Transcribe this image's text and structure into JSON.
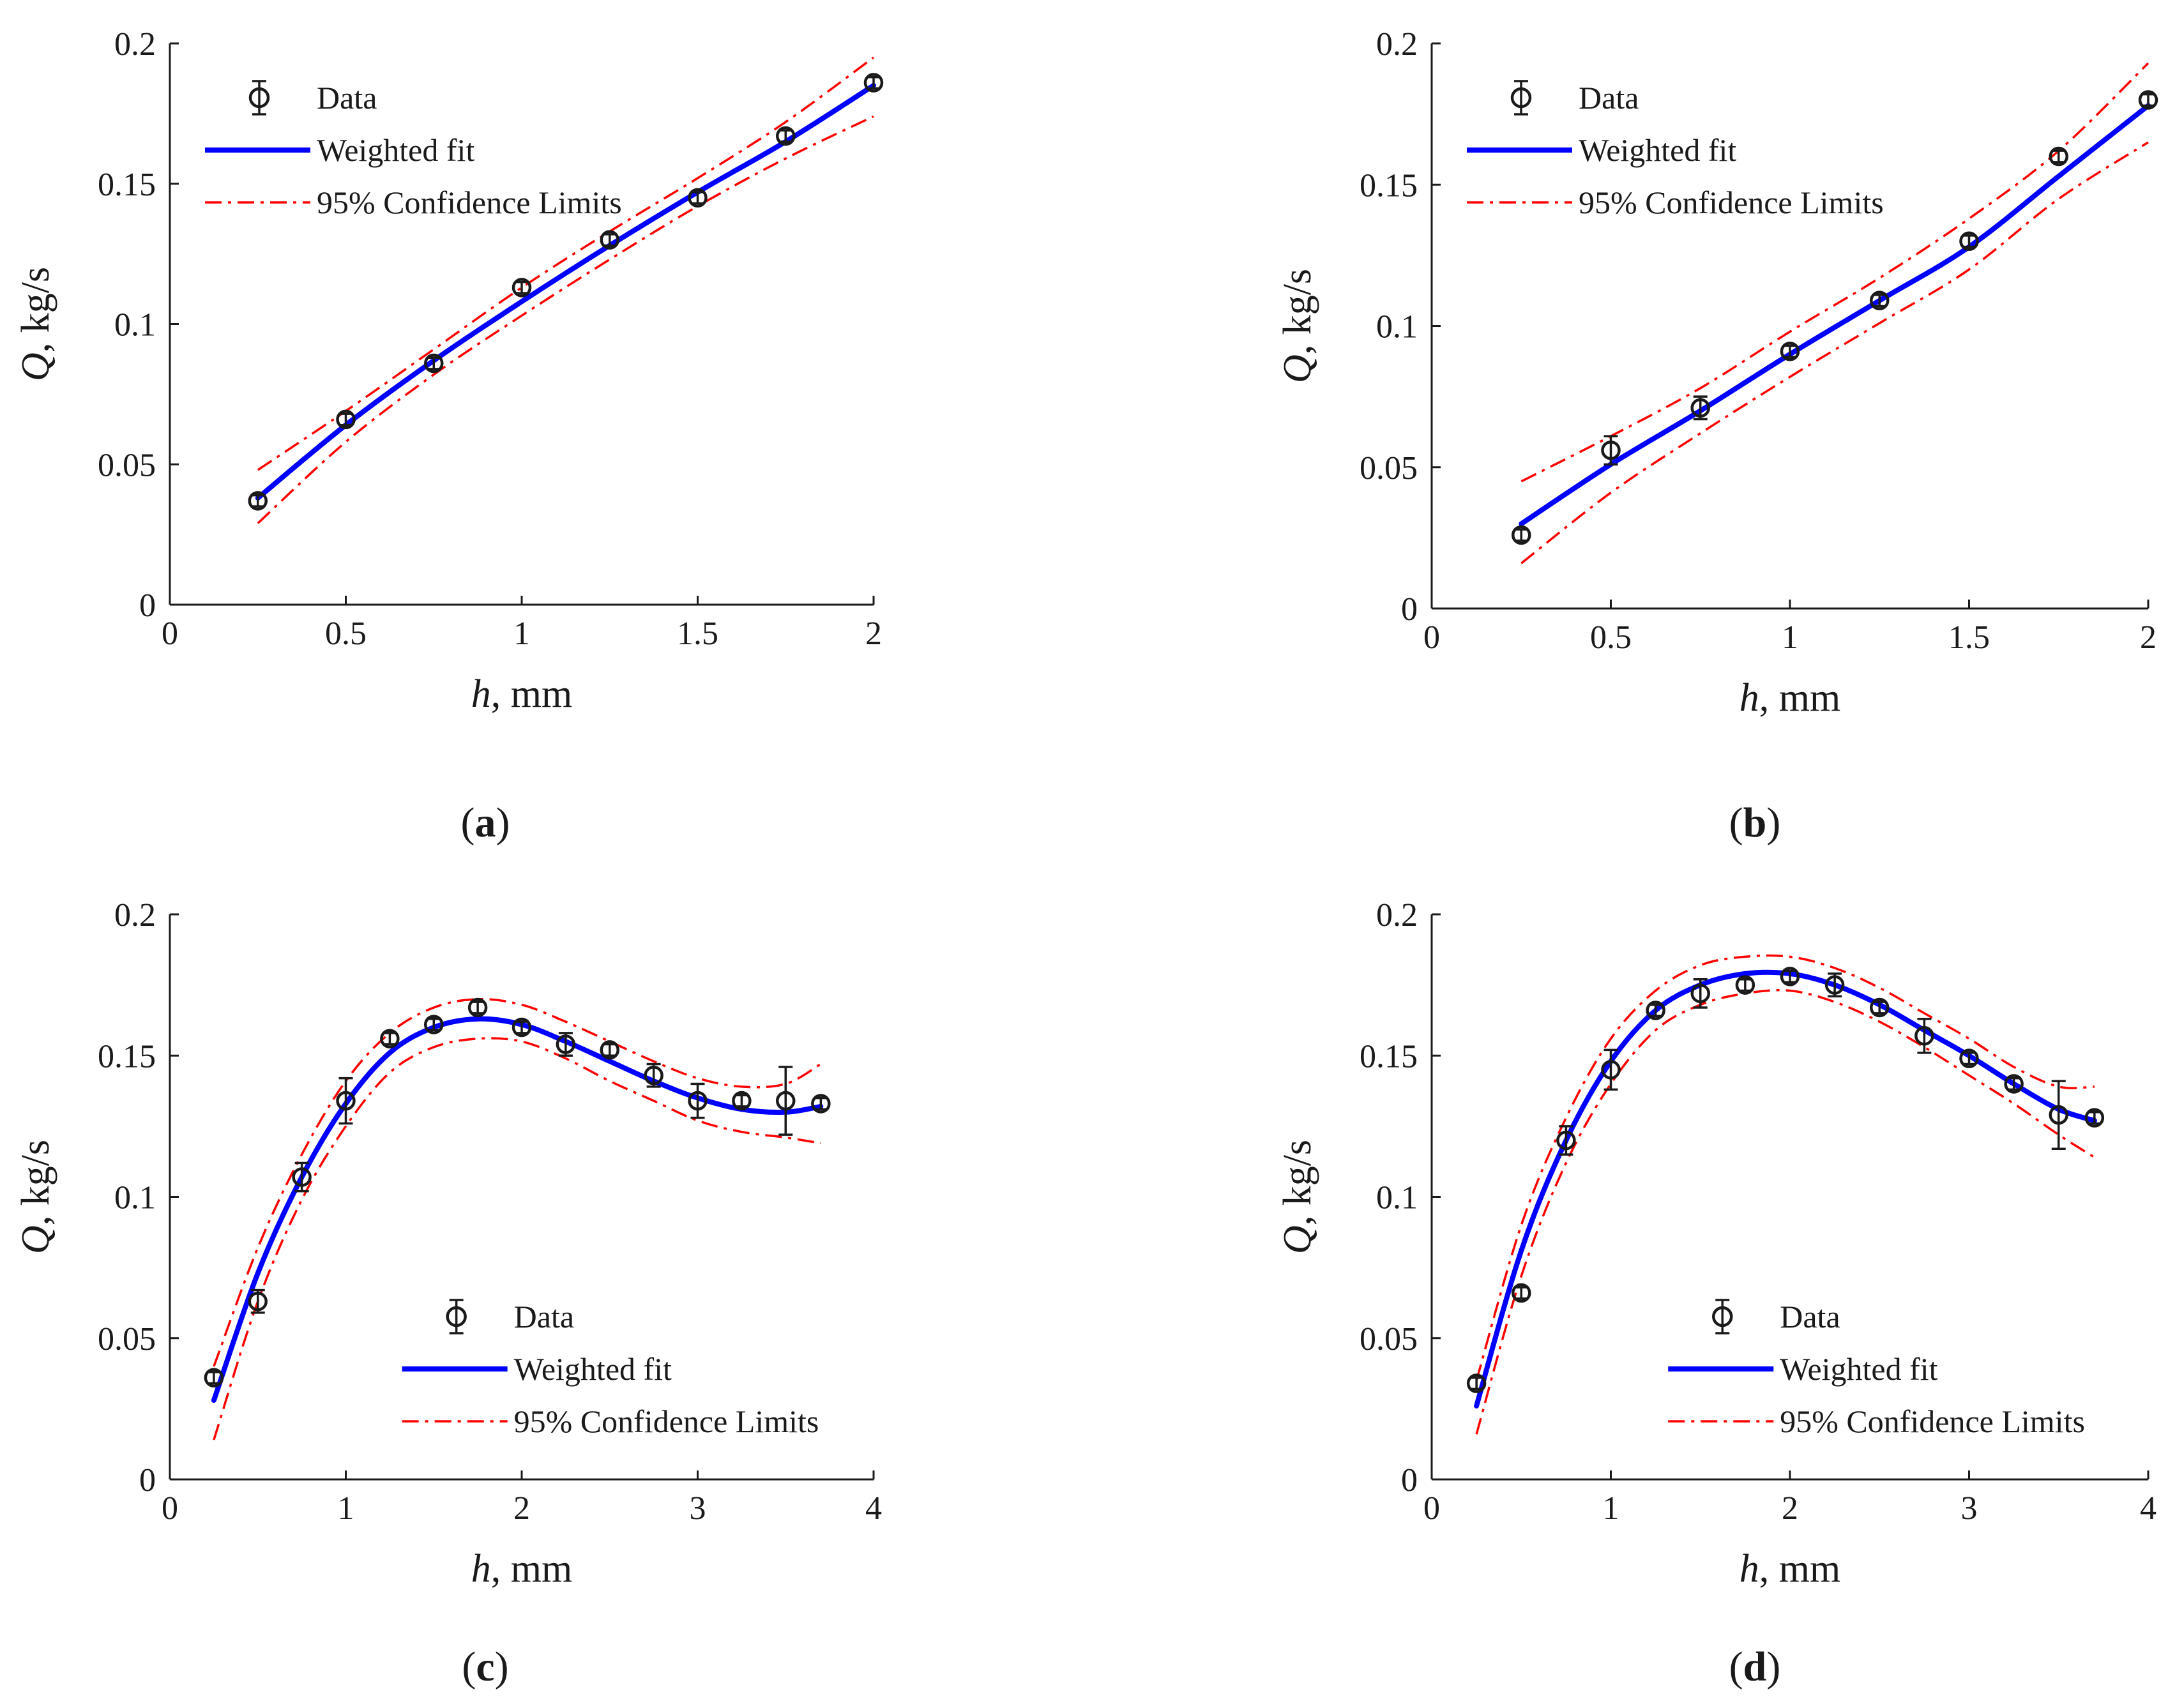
{
  "figure": {
    "panels": [
      "a",
      "b",
      "c",
      "d"
    ]
  },
  "colors": {
    "data": "#1a1a1a",
    "fit": "#0000ff",
    "confidence": "#ff0000",
    "axis": "#1a1a1a"
  },
  "chart_data": [
    {
      "type": "scatter",
      "caption": "(a)",
      "caption_letter": "a",
      "xlabel": "h, mm",
      "ylabel": "Q, kg/s",
      "xlabel_var": "h",
      "xlabel_unit": ", mm",
      "ylabel_var": "Q",
      "ylabel_unit": ", kg/s",
      "xlim": [
        0,
        2
      ],
      "ylim": [
        0,
        0.2
      ],
      "xticks": [
        0,
        0.5,
        1,
        1.5,
        2
      ],
      "xtick_labels": [
        "0",
        "0.5",
        "1",
        "1.5",
        "2"
      ],
      "yticks": [
        0,
        0.05,
        0.1,
        0.15,
        0.2
      ],
      "ytick_labels": [
        "0",
        "0.05",
        "0.1",
        "0.15",
        "0.2"
      ],
      "grid": false,
      "legend_position": "top-left",
      "legend": [
        "Data",
        "Weighted fit",
        "95% Confidence Limits"
      ],
      "series": [
        {
          "name": "Data",
          "kind": "errorbar",
          "x": [
            0.25,
            0.5,
            0.75,
            1.0,
            1.25,
            1.5,
            1.75,
            2.0
          ],
          "y": [
            0.037,
            0.066,
            0.086,
            0.113,
            0.13,
            0.145,
            0.167,
            0.186
          ],
          "err": [
            0.002,
            0.002,
            0.002,
            0.002,
            0.002,
            0.002,
            0.002,
            0.002
          ]
        },
        {
          "name": "Weighted fit",
          "kind": "line",
          "x": [
            0.25,
            0.5,
            0.75,
            1.0,
            1.25,
            1.5,
            1.75,
            2.0
          ],
          "y": [
            0.038,
            0.064,
            0.087,
            0.108,
            0.128,
            0.147,
            0.165,
            0.185
          ]
        },
        {
          "name": "95% Confidence Limits",
          "kind": "dashdot",
          "x": [
            0.25,
            0.5,
            0.75,
            1.0,
            1.25,
            1.5,
            1.75,
            2.0
          ],
          "y": [
            0.048,
            0.069,
            0.091,
            0.113,
            0.133,
            0.152,
            0.172,
            0.195
          ]
        },
        {
          "name": "95% Confidence Limits",
          "kind": "dashdot",
          "x": [
            0.25,
            0.5,
            0.75,
            1.0,
            1.25,
            1.5,
            1.75,
            2.0
          ],
          "y": [
            0.029,
            0.058,
            0.082,
            0.103,
            0.123,
            0.142,
            0.159,
            0.174
          ]
        }
      ]
    },
    {
      "type": "scatter",
      "caption": "(b)",
      "caption_letter": "b",
      "xlabel": "h, mm",
      "ylabel": "Q, kg/s",
      "xlabel_var": "h",
      "xlabel_unit": ", mm",
      "ylabel_var": "Q",
      "ylabel_unit": ", kg/s",
      "xlim": [
        0,
        2
      ],
      "ylim": [
        0,
        0.2
      ],
      "xticks": [
        0,
        0.5,
        1,
        1.5,
        2
      ],
      "xtick_labels": [
        "0",
        "0.5",
        "1",
        "1.5",
        "2"
      ],
      "yticks": [
        0,
        0.05,
        0.1,
        0.15,
        0.2
      ],
      "ytick_labels": [
        "0",
        "0.05",
        "0.1",
        "0.15",
        "0.2"
      ],
      "grid": false,
      "legend_position": "top-left",
      "legend": [
        "Data",
        "Weighted fit",
        "95% Confidence Limits"
      ],
      "series": [
        {
          "name": "Data",
          "kind": "errorbar",
          "x": [
            0.25,
            0.5,
            0.75,
            1.0,
            1.25,
            1.5,
            1.75,
            2.0
          ],
          "y": [
            0.026,
            0.056,
            0.071,
            0.091,
            0.109,
            0.13,
            0.16,
            0.18
          ],
          "err": [
            0.002,
            0.005,
            0.004,
            0.002,
            0.002,
            0.002,
            0.002,
            0.002
          ]
        },
        {
          "name": "Weighted fit",
          "kind": "line",
          "x": [
            0.25,
            0.5,
            0.75,
            1.0,
            1.25,
            1.5,
            1.75,
            2.0
          ],
          "y": [
            0.03,
            0.051,
            0.07,
            0.09,
            0.109,
            0.128,
            0.153,
            0.178
          ]
        },
        {
          "name": "95% Confidence Limits",
          "kind": "dashdot",
          "x": [
            0.25,
            0.5,
            0.75,
            1.0,
            1.25,
            1.5,
            1.75,
            2.0
          ],
          "y": [
            0.045,
            0.061,
            0.078,
            0.098,
            0.117,
            0.138,
            0.162,
            0.193
          ]
        },
        {
          "name": "95% Confidence Limits",
          "kind": "dashdot",
          "x": [
            0.25,
            0.5,
            0.75,
            1.0,
            1.25,
            1.5,
            1.75,
            2.0
          ],
          "y": [
            0.016,
            0.041,
            0.062,
            0.082,
            0.101,
            0.12,
            0.145,
            0.165
          ]
        }
      ]
    },
    {
      "type": "scatter",
      "caption": "(c)",
      "caption_letter": "c",
      "xlabel": "h, mm",
      "ylabel": "Q, kg/s",
      "xlabel_var": "h",
      "xlabel_unit": ", mm",
      "ylabel_var": "Q",
      "ylabel_unit": ", kg/s",
      "xlim": [
        0,
        4
      ],
      "ylim": [
        0,
        0.2
      ],
      "xticks": [
        0,
        1,
        2,
        3,
        4
      ],
      "xtick_labels": [
        "0",
        "1",
        "2",
        "3",
        "4"
      ],
      "yticks": [
        0,
        0.05,
        0.1,
        0.15,
        0.2
      ],
      "ytick_labels": [
        "0",
        "0.05",
        "0.1",
        "0.15",
        "0.2"
      ],
      "grid": false,
      "legend_position": "bottom-right",
      "legend": [
        "Data",
        "Weighted fit",
        "95% Confidence Limits"
      ],
      "series": [
        {
          "name": "Data",
          "kind": "errorbar",
          "x": [
            0.25,
            0.5,
            0.75,
            1.0,
            1.25,
            1.5,
            1.75,
            2.0,
            2.25,
            2.5,
            2.75,
            3.0,
            3.25,
            3.5,
            3.7
          ],
          "y": [
            0.036,
            0.063,
            0.107,
            0.134,
            0.156,
            0.161,
            0.167,
            0.16,
            0.154,
            0.152,
            0.143,
            0.134,
            0.134,
            0.134,
            0.133
          ],
          "err": [
            0.002,
            0.004,
            0.005,
            0.008,
            0.002,
            0.002,
            0.002,
            0.002,
            0.004,
            0.002,
            0.004,
            0.006,
            0.002,
            0.012,
            0.002
          ]
        },
        {
          "name": "Weighted fit",
          "kind": "line",
          "x": [
            0.25,
            0.5,
            0.75,
            1.0,
            1.25,
            1.5,
            1.75,
            2.0,
            2.25,
            2.5,
            2.75,
            3.0,
            3.25,
            3.5,
            3.7
          ],
          "y": [
            0.028,
            0.073,
            0.107,
            0.133,
            0.151,
            0.16,
            0.163,
            0.161,
            0.155,
            0.148,
            0.141,
            0.135,
            0.131,
            0.13,
            0.132
          ]
        },
        {
          "name": "95% Confidence Limits",
          "kind": "dashdot",
          "x": [
            0.25,
            0.5,
            0.75,
            1.0,
            1.25,
            1.5,
            1.75,
            2.0,
            2.25,
            2.5,
            2.75,
            3.0,
            3.25,
            3.5,
            3.7
          ],
          "y": [
            0.04,
            0.082,
            0.115,
            0.141,
            0.158,
            0.167,
            0.17,
            0.168,
            0.162,
            0.155,
            0.148,
            0.142,
            0.139,
            0.14,
            0.147
          ]
        },
        {
          "name": "95% Confidence Limits",
          "kind": "dashdot",
          "x": [
            0.25,
            0.5,
            0.75,
            1.0,
            1.25,
            1.5,
            1.75,
            2.0,
            2.25,
            2.5,
            2.75,
            3.0,
            3.25,
            3.5,
            3.7
          ],
          "y": [
            0.014,
            0.063,
            0.099,
            0.125,
            0.144,
            0.153,
            0.156,
            0.155,
            0.149,
            0.141,
            0.134,
            0.127,
            0.123,
            0.121,
            0.119
          ]
        }
      ]
    },
    {
      "type": "scatter",
      "caption": "(d)",
      "caption_letter": "d",
      "xlabel": "h, mm",
      "ylabel": "Q, kg/s",
      "xlabel_var": "h",
      "xlabel_unit": ", mm",
      "ylabel_var": "Q",
      "ylabel_unit": ", kg/s",
      "xlim": [
        0,
        4
      ],
      "ylim": [
        0,
        0.2
      ],
      "xticks": [
        0,
        1,
        2,
        3,
        4
      ],
      "xtick_labels": [
        "0",
        "1",
        "2",
        "3",
        "4"
      ],
      "yticks": [
        0,
        0.05,
        0.1,
        0.15,
        0.2
      ],
      "ytick_labels": [
        "0",
        "0.05",
        "0.1",
        "0.15",
        "0.2"
      ],
      "grid": false,
      "legend_position": "bottom-right",
      "legend": [
        "Data",
        "Weighted fit",
        "95% Confidence Limits"
      ],
      "series": [
        {
          "name": "Data",
          "kind": "errorbar",
          "x": [
            0.25,
            0.5,
            0.75,
            1.0,
            1.25,
            1.5,
            1.75,
            2.0,
            2.25,
            2.5,
            2.75,
            3.0,
            3.25,
            3.5,
            3.7
          ],
          "y": [
            0.034,
            0.066,
            0.12,
            0.145,
            0.166,
            0.172,
            0.175,
            0.178,
            0.175,
            0.167,
            0.157,
            0.149,
            0.14,
            0.129,
            0.128
          ],
          "err": [
            0.002,
            0.002,
            0.005,
            0.007,
            0.002,
            0.005,
            0.002,
            0.002,
            0.004,
            0.002,
            0.006,
            0.002,
            0.002,
            0.012,
            0.002
          ]
        },
        {
          "name": "Weighted fit",
          "kind": "line",
          "x": [
            0.25,
            0.5,
            0.75,
            1.0,
            1.25,
            1.5,
            1.75,
            2.0,
            2.25,
            2.5,
            2.75,
            3.0,
            3.25,
            3.5,
            3.7
          ],
          "y": [
            0.026,
            0.081,
            0.12,
            0.148,
            0.166,
            0.175,
            0.179,
            0.179,
            0.175,
            0.168,
            0.159,
            0.15,
            0.14,
            0.131,
            0.127
          ]
        },
        {
          "name": "95% Confidence Limits",
          "kind": "dashdot",
          "x": [
            0.25,
            0.5,
            0.75,
            1.0,
            1.25,
            1.5,
            1.75,
            2.0,
            2.25,
            2.5,
            2.75,
            3.0,
            3.25,
            3.5,
            3.7
          ],
          "y": [
            0.035,
            0.09,
            0.128,
            0.156,
            0.173,
            0.182,
            0.185,
            0.185,
            0.181,
            0.174,
            0.165,
            0.156,
            0.146,
            0.139,
            0.139
          ]
        },
        {
          "name": "95% Confidence Limits",
          "kind": "dashdot",
          "x": [
            0.25,
            0.5,
            0.75,
            1.0,
            1.25,
            1.5,
            1.75,
            2.0,
            2.25,
            2.5,
            2.75,
            3.0,
            3.25,
            3.5,
            3.7
          ],
          "y": [
            0.016,
            0.072,
            0.112,
            0.14,
            0.159,
            0.168,
            0.172,
            0.173,
            0.169,
            0.162,
            0.153,
            0.143,
            0.133,
            0.122,
            0.114
          ]
        }
      ]
    }
  ]
}
